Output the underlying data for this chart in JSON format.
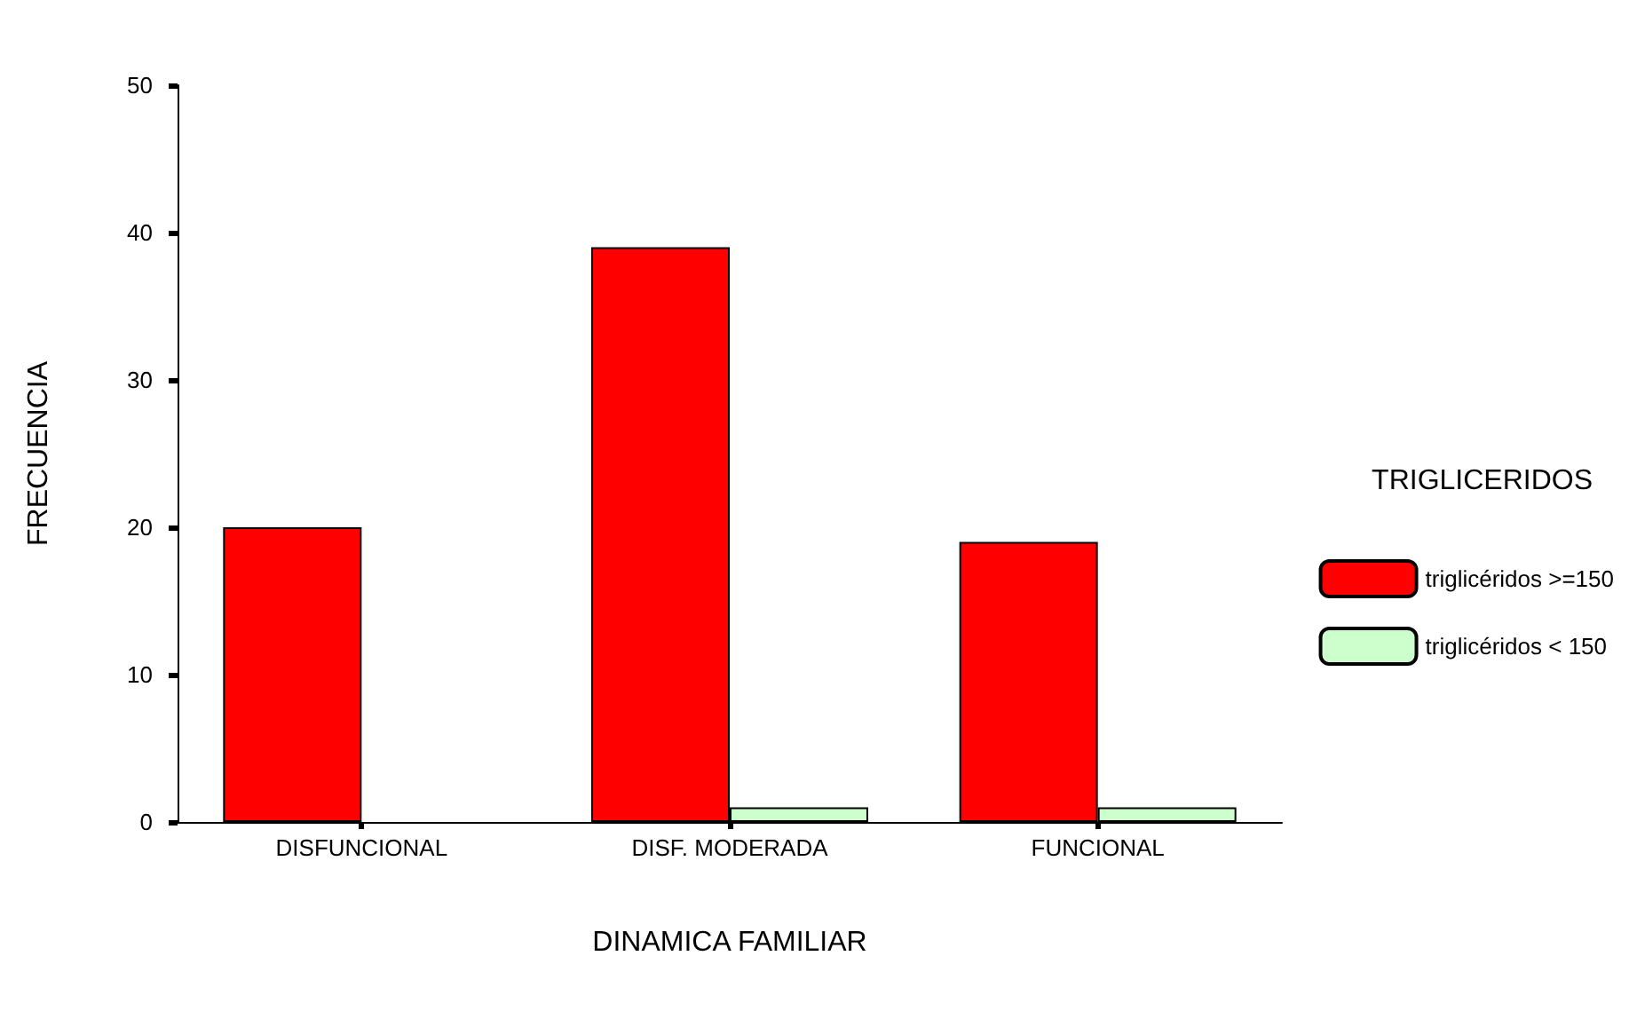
{
  "chart_data": {
    "type": "bar",
    "xlabel": "DINAMICA FAMILIAR",
    "ylabel": "FRECUENCIA",
    "legend_title": "TRIGLICERIDOS",
    "categories": [
      "DISFUNCIONAL",
      "DISF. MODERADA",
      "FUNCIONAL"
    ],
    "series": [
      {
        "name": "triglicéridos >=150",
        "color": "#ff0000",
        "values": [
          20,
          39,
          19
        ]
      },
      {
        "name": "triglicéridos < 150",
        "color": "#ccffcc",
        "values": [
          null,
          1,
          1
        ]
      }
    ],
    "ylim": [
      0,
      50
    ],
    "yticks": [
      0,
      10,
      20,
      30,
      40,
      50
    ],
    "grid": false,
    "legend": "right"
  }
}
